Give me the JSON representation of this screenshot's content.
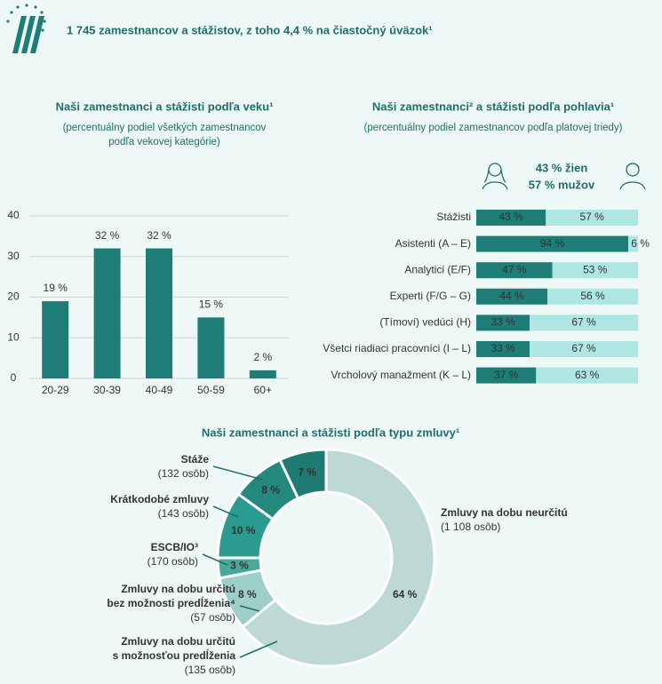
{
  "header": {
    "title": "1 745 zamestnancov a stážistov, z toho 4,4 % na čiastočný úväzok¹"
  },
  "chart_data": [
    {
      "type": "bar",
      "title": "Naši zamestnanci a stážisti podľa veku¹",
      "subtitle": [
        "(percentuálny podiel všetkých zamestnancov",
        "podľa vekovej kategórie)"
      ],
      "categories": [
        "20-29",
        "30-39",
        "40-49",
        "50-59",
        "60+"
      ],
      "values": [
        19,
        32,
        32,
        15,
        2
      ],
      "value_labels": [
        "19 %",
        "32 %",
        "32 %",
        "15 %",
        "2 %"
      ],
      "color": "#1f7d77",
      "ylim": [
        0,
        40
      ],
      "yticks": [
        0,
        10,
        20,
        30,
        40
      ],
      "grid": true
    },
    {
      "type": "hbar-stacked",
      "title": "Naši zamestnanci² a stážisti podľa pohlavia¹",
      "subtitle": [
        "(percentuálny podiel zamestnancov podľa platovej triedy)"
      ],
      "annotations": [
        "43 % žien",
        "57 % mužov"
      ],
      "categories": [
        "Stážisti",
        "Asistenti (A – E)",
        "Analytici (E/F)",
        "Experti (F/G – G)",
        "(Tímoví) vedúci (H)",
        "Všetci riadiaci pracovníci (I – L)",
        "Vrcholový manažment (K – L)"
      ],
      "xlim": [
        0,
        100
      ],
      "series": [
        {
          "color": "#1f7d77",
          "values": [
            43,
            94,
            47,
            44,
            33,
            33,
            37
          ],
          "value_labels": [
            "43 %",
            "94 %",
            "47 %",
            "44 %",
            "33 %",
            "33 %",
            "37 %"
          ]
        },
        {
          "color": "#aee6e3",
          "values": [
            57,
            6,
            53,
            56,
            67,
            67,
            63
          ],
          "value_labels": [
            "57 %",
            "6 %",
            "53 %",
            "56 %",
            "67 %",
            "67 %",
            "63 %"
          ]
        }
      ]
    },
    {
      "type": "donut",
      "title": "Naši zamestnanci a stážisti podľa typu zmluvy¹",
      "categories": [
        [
          "Zmluvy na dobu neurčitú"
        ],
        [
          "Zmluvy na dobu určitú",
          "s možnosťou predĺženia"
        ],
        [
          "Zmluvy na dobu určitú",
          "bez možnosti predĺženia⁴"
        ],
        [
          "ESCB/IO³"
        ],
        [
          "Krátkodobé zmluvy"
        ],
        [
          "Stáže"
        ]
      ],
      "count_labels": [
        "(1 108 osôb)",
        "(135 osôb)",
        "(57 osôb)",
        "(170 osôb)",
        "(143 osôb)",
        "(132 osôb)"
      ],
      "values": [
        64,
        8,
        3,
        10,
        8,
        7
      ],
      "value_labels": [
        "64 %",
        "8 %",
        "3 %",
        "10 %",
        "8 %",
        "7 %"
      ],
      "colors": [
        "#bdd8d5",
        "#9dcfc8",
        "#4aa79c",
        "#2b9a90",
        "#25887f",
        "#1e7a72"
      ]
    }
  ]
}
